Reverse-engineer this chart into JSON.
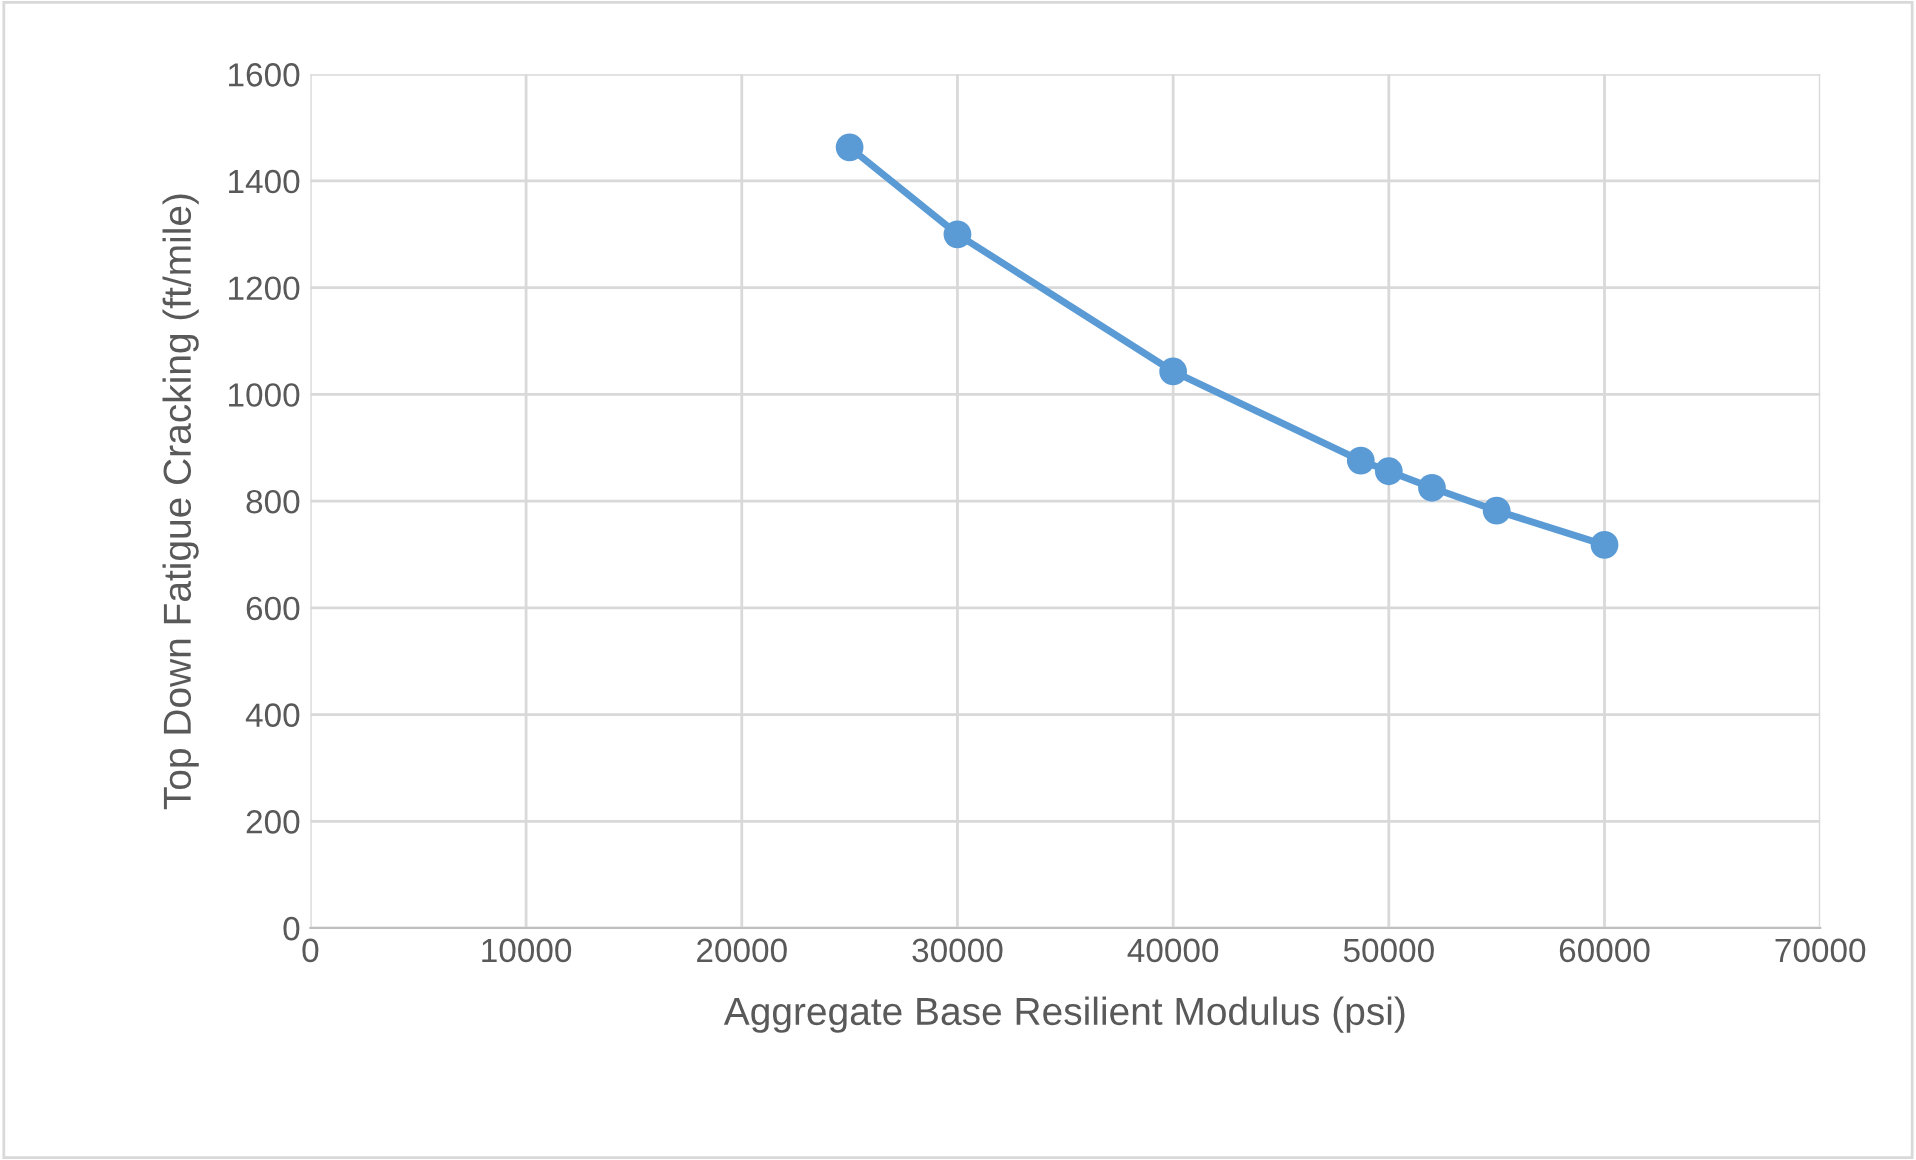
{
  "chart_data": {
    "type": "line",
    "xlabel": "Aggregate Base Resilient Modulus (psi)",
    "ylabel": "Top Down Fatigue Cracking (ft/mile)",
    "x": [
      25000,
      30000,
      40000,
      48700,
      50000,
      52000,
      55000,
      60000
    ],
    "series": [
      {
        "color": "#5b9bd5",
        "values": [
          1463,
          1300,
          1043,
          876,
          856,
          825,
          782,
          718
        ]
      }
    ],
    "xlim": [
      0,
      70000
    ],
    "xticks": [
      0,
      10000,
      20000,
      30000,
      40000,
      50000,
      60000,
      70000
    ],
    "ylim": [
      0,
      1600
    ],
    "yticks": [
      0,
      200,
      400,
      600,
      800,
      1000,
      1200,
      1400,
      1600
    ],
    "grid": true,
    "marker": "circle",
    "line_style": "solid",
    "legend": false
  }
}
